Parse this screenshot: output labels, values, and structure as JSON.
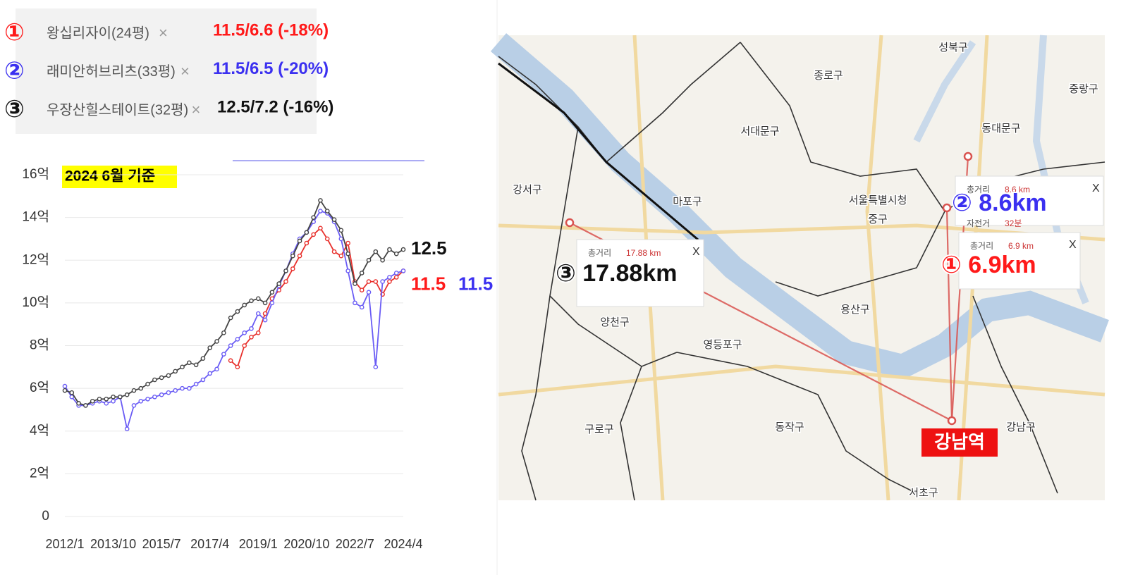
{
  "chart_data": {
    "type": "line",
    "title": "2024 6월 기준",
    "legend_close": "×",
    "categories": [
      "2012/1",
      null,
      null,
      null,
      null,
      null,
      null,
      "2013/10",
      null,
      null,
      null,
      null,
      null,
      null,
      "2015/7",
      null,
      null,
      null,
      null,
      null,
      null,
      "2017/4",
      null,
      null,
      null,
      null,
      null,
      null,
      "2019/1",
      null,
      null,
      null,
      null,
      null,
      null,
      "2020/10",
      null,
      null,
      null,
      null,
      null,
      null,
      "2022/7",
      null,
      null,
      null,
      null,
      null,
      null,
      "2024/4"
    ],
    "series": [
      {
        "name": "왕십리자이(24평)",
        "marker": "①",
        "note": "11.5/6.6 (-18%)",
        "color": "#e8302c",
        "text_color": "#ff1a1a",
        "values": [
          null,
          null,
          null,
          null,
          null,
          null,
          null,
          null,
          null,
          null,
          null,
          null,
          null,
          null,
          null,
          null,
          null,
          null,
          null,
          null,
          null,
          null,
          null,
          null,
          7.3,
          7.0,
          8.0,
          8.4,
          8.6,
          9.5,
          10.2,
          10.6,
          11.0,
          11.6,
          12.2,
          12.8,
          13.2,
          13.5,
          13.0,
          12.4,
          12.2,
          12.8,
          11.0,
          10.6,
          11.0,
          11.0,
          10.4,
          11.0,
          11.2,
          11.5
        ]
      },
      {
        "name": "래미안허브리츠(33평)",
        "marker": "②",
        "note": "11.5/6.5 (-20%)",
        "color": "#6a5cf5",
        "text_color": "#3b30f0",
        "values": [
          6.1,
          5.6,
          5.2,
          5.2,
          5.3,
          5.4,
          5.3,
          5.4,
          5.6,
          4.1,
          5.2,
          5.4,
          5.5,
          5.6,
          5.7,
          5.8,
          5.9,
          6.0,
          6.0,
          6.2,
          6.4,
          6.7,
          6.9,
          7.6,
          8.0,
          8.3,
          8.6,
          8.8,
          9.5,
          9.2,
          10.0,
          10.8,
          11.5,
          12.3,
          13.0,
          13.3,
          13.8,
          14.3,
          14.2,
          13.8,
          13.0,
          11.5,
          10.0,
          9.8,
          10.5,
          7.0,
          11.0,
          11.2,
          11.4,
          11.5
        ]
      },
      {
        "name": "우장산힐스테이트(32평)",
        "marker": "③",
        "note": "12.5/7.2 (-16%)",
        "color": "#444444",
        "text_color": "#111111",
        "values": [
          5.9,
          5.8,
          5.3,
          5.2,
          5.4,
          5.5,
          5.5,
          5.6,
          5.6,
          5.7,
          5.9,
          6.0,
          6.2,
          6.4,
          6.5,
          6.6,
          6.8,
          7.0,
          7.2,
          7.1,
          7.4,
          7.9,
          8.2,
          8.6,
          9.3,
          9.6,
          9.9,
          10.1,
          10.2,
          10.0,
          10.5,
          10.9,
          11.5,
          12.2,
          12.9,
          13.3,
          14.0,
          14.8,
          14.3,
          13.9,
          13.4,
          12.3,
          10.9,
          11.4,
          12.0,
          12.4,
          12.0,
          12.5,
          12.3,
          12.5
        ]
      }
    ],
    "end_labels": [
      {
        "text": "12.5",
        "series": 2
      },
      {
        "text": "11.5",
        "series": 0
      },
      {
        "text": "11.5",
        "series": 1
      }
    ],
    "ylim": [
      0,
      16
    ],
    "yticks": [
      0,
      {
        "value": 2,
        "label": "2억"
      },
      {
        "value": 4,
        "label": "4억"
      },
      {
        "value": 6,
        "label": "6억"
      },
      {
        "value": 8,
        "label": "8억"
      },
      {
        "value": 10,
        "label": "10억"
      },
      {
        "value": 12,
        "label": "12억"
      },
      {
        "value": 14,
        "label": "14억"
      },
      {
        "value": 16,
        "label": "16억"
      }
    ],
    "grid": true
  },
  "map": {
    "labels": [
      "성북구",
      "종로구",
      "중랑구",
      "서대문구",
      "동대문구",
      "강서구",
      "마포구",
      "서울특별시청",
      "중구",
      "용산구",
      "양천구",
      "영등포구",
      "동작구",
      "구로구",
      "강남구",
      "서초구"
    ],
    "popups": [
      {
        "rows": [
          [
            "총거리",
            "17.88 km"
          ]
        ],
        "close": "X",
        "headline": "③ 17.88km",
        "color": "#111111"
      },
      {
        "rows": [
          [
            "총거리",
            "8.6 km"
          ],
          [
            "자전거",
            "32분"
          ]
        ],
        "close": "X",
        "headline": "② 8.6km",
        "color": "#3b30f0"
      },
      {
        "rows": [
          [
            "총거리",
            "6.9 km"
          ]
        ],
        "close": "X",
        "headline": "① 6.9km",
        "color": "#ff1a1a"
      }
    ],
    "destination": "강남역"
  }
}
